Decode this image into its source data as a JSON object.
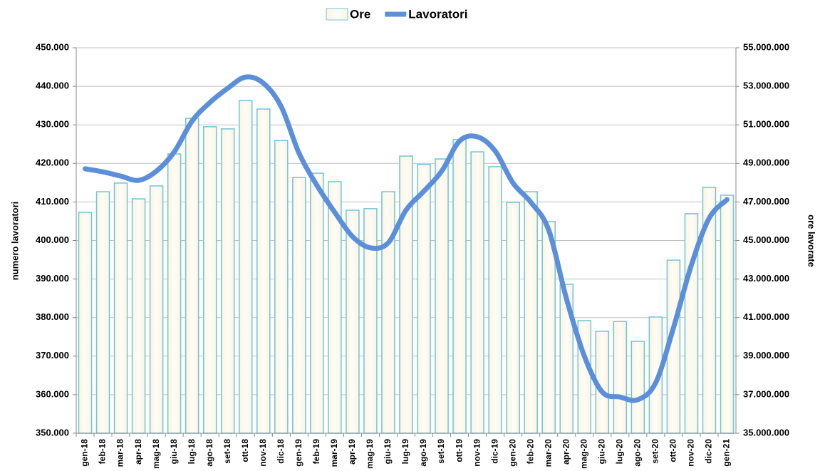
{
  "chart_data": {
    "type": "combo",
    "categories": [
      "gen-18",
      "feb-18",
      "mar-18",
      "apr-18",
      "mag-18",
      "giu-18",
      "lug-18",
      "ago-18",
      "set-18",
      "ott-18",
      "nov-18",
      "dic-18",
      "gen-19",
      "feb-19",
      "mar-19",
      "apr-19",
      "mag-19",
      "giu-19",
      "lug-19",
      "ago-19",
      "set-19",
      "ott-19",
      "nov-19",
      "dic-19",
      "gen-20",
      "feb-20",
      "mar-20",
      "apr-20",
      "mag-20",
      "giu-20",
      "lug-20",
      "ago-20",
      "set-20",
      "ott-20",
      "nov-20",
      "dic-20",
      "gen-21"
    ],
    "series": [
      {
        "name": "Ore",
        "type": "bar",
        "axis": "y2",
        "color": "#fdf3e1",
        "edge": "#6cc6d6",
        "values": [
          46460000,
          47530000,
          47980000,
          47160000,
          47830000,
          49490000,
          51340000,
          50900000,
          50790000,
          52260000,
          51820000,
          50190000,
          48270000,
          48490000,
          48050000,
          46570000,
          46650000,
          47530000,
          49380000,
          48940000,
          49230000,
          50230000,
          49600000,
          48830000,
          46980000,
          47530000,
          45980000,
          42730000,
          40840000,
          40290000,
          40800000,
          39770000,
          41030000,
          43980000,
          46390000,
          47750000,
          47350000
        ]
      },
      {
        "name": "Lavoratori",
        "type": "line",
        "axis": "y",
        "color": "#5b8fd9",
        "values": [
          418600,
          417800,
          416700,
          415600,
          418000,
          423000,
          431000,
          435800,
          439500,
          442400,
          440800,
          434700,
          422600,
          414300,
          407300,
          401000,
          398100,
          399400,
          407900,
          412800,
          418000,
          425800,
          426900,
          423200,
          414900,
          409900,
          402700,
          384800,
          370000,
          360700,
          359400,
          358700,
          363100,
          377400,
          393600,
          405800,
          410600
        ]
      }
    ],
    "ylabel": "numero lavoratori",
    "y2label": "ore lavorate",
    "ylim": [
      350000,
      450000
    ],
    "yticks": [
      {
        "value": 350000,
        "label": "350.000"
      },
      {
        "value": 360000,
        "label": "360.000"
      },
      {
        "value": 370000,
        "label": "370.000"
      },
      {
        "value": 380000,
        "label": "380.000"
      },
      {
        "value": 390000,
        "label": "390.000"
      },
      {
        "value": 400000,
        "label": "400.000"
      },
      {
        "value": 410000,
        "label": "410.000"
      },
      {
        "value": 420000,
        "label": "420.000"
      },
      {
        "value": 430000,
        "label": "430.000"
      },
      {
        "value": 440000,
        "label": "440.000"
      },
      {
        "value": 450000,
        "label": "450.000"
      }
    ],
    "y2lim": [
      35000000,
      55000000
    ],
    "y2ticks": [
      {
        "value": 35000000,
        "label": "35.000.000"
      },
      {
        "value": 37000000,
        "label": "37.000.000"
      },
      {
        "value": 39000000,
        "label": "39.000.000"
      },
      {
        "value": 41000000,
        "label": "41.000.000"
      },
      {
        "value": 43000000,
        "label": "43.000.000"
      },
      {
        "value": 45000000,
        "label": "45.000.000"
      },
      {
        "value": 47000000,
        "label": "47.000.000"
      },
      {
        "value": 49000000,
        "label": "49.000.000"
      },
      {
        "value": 51000000,
        "label": "51.000.000"
      },
      {
        "value": 53000000,
        "label": "53.000.000"
      },
      {
        "value": 55000000,
        "label": "55.000.000"
      }
    ],
    "grid": true,
    "legend": "top"
  }
}
